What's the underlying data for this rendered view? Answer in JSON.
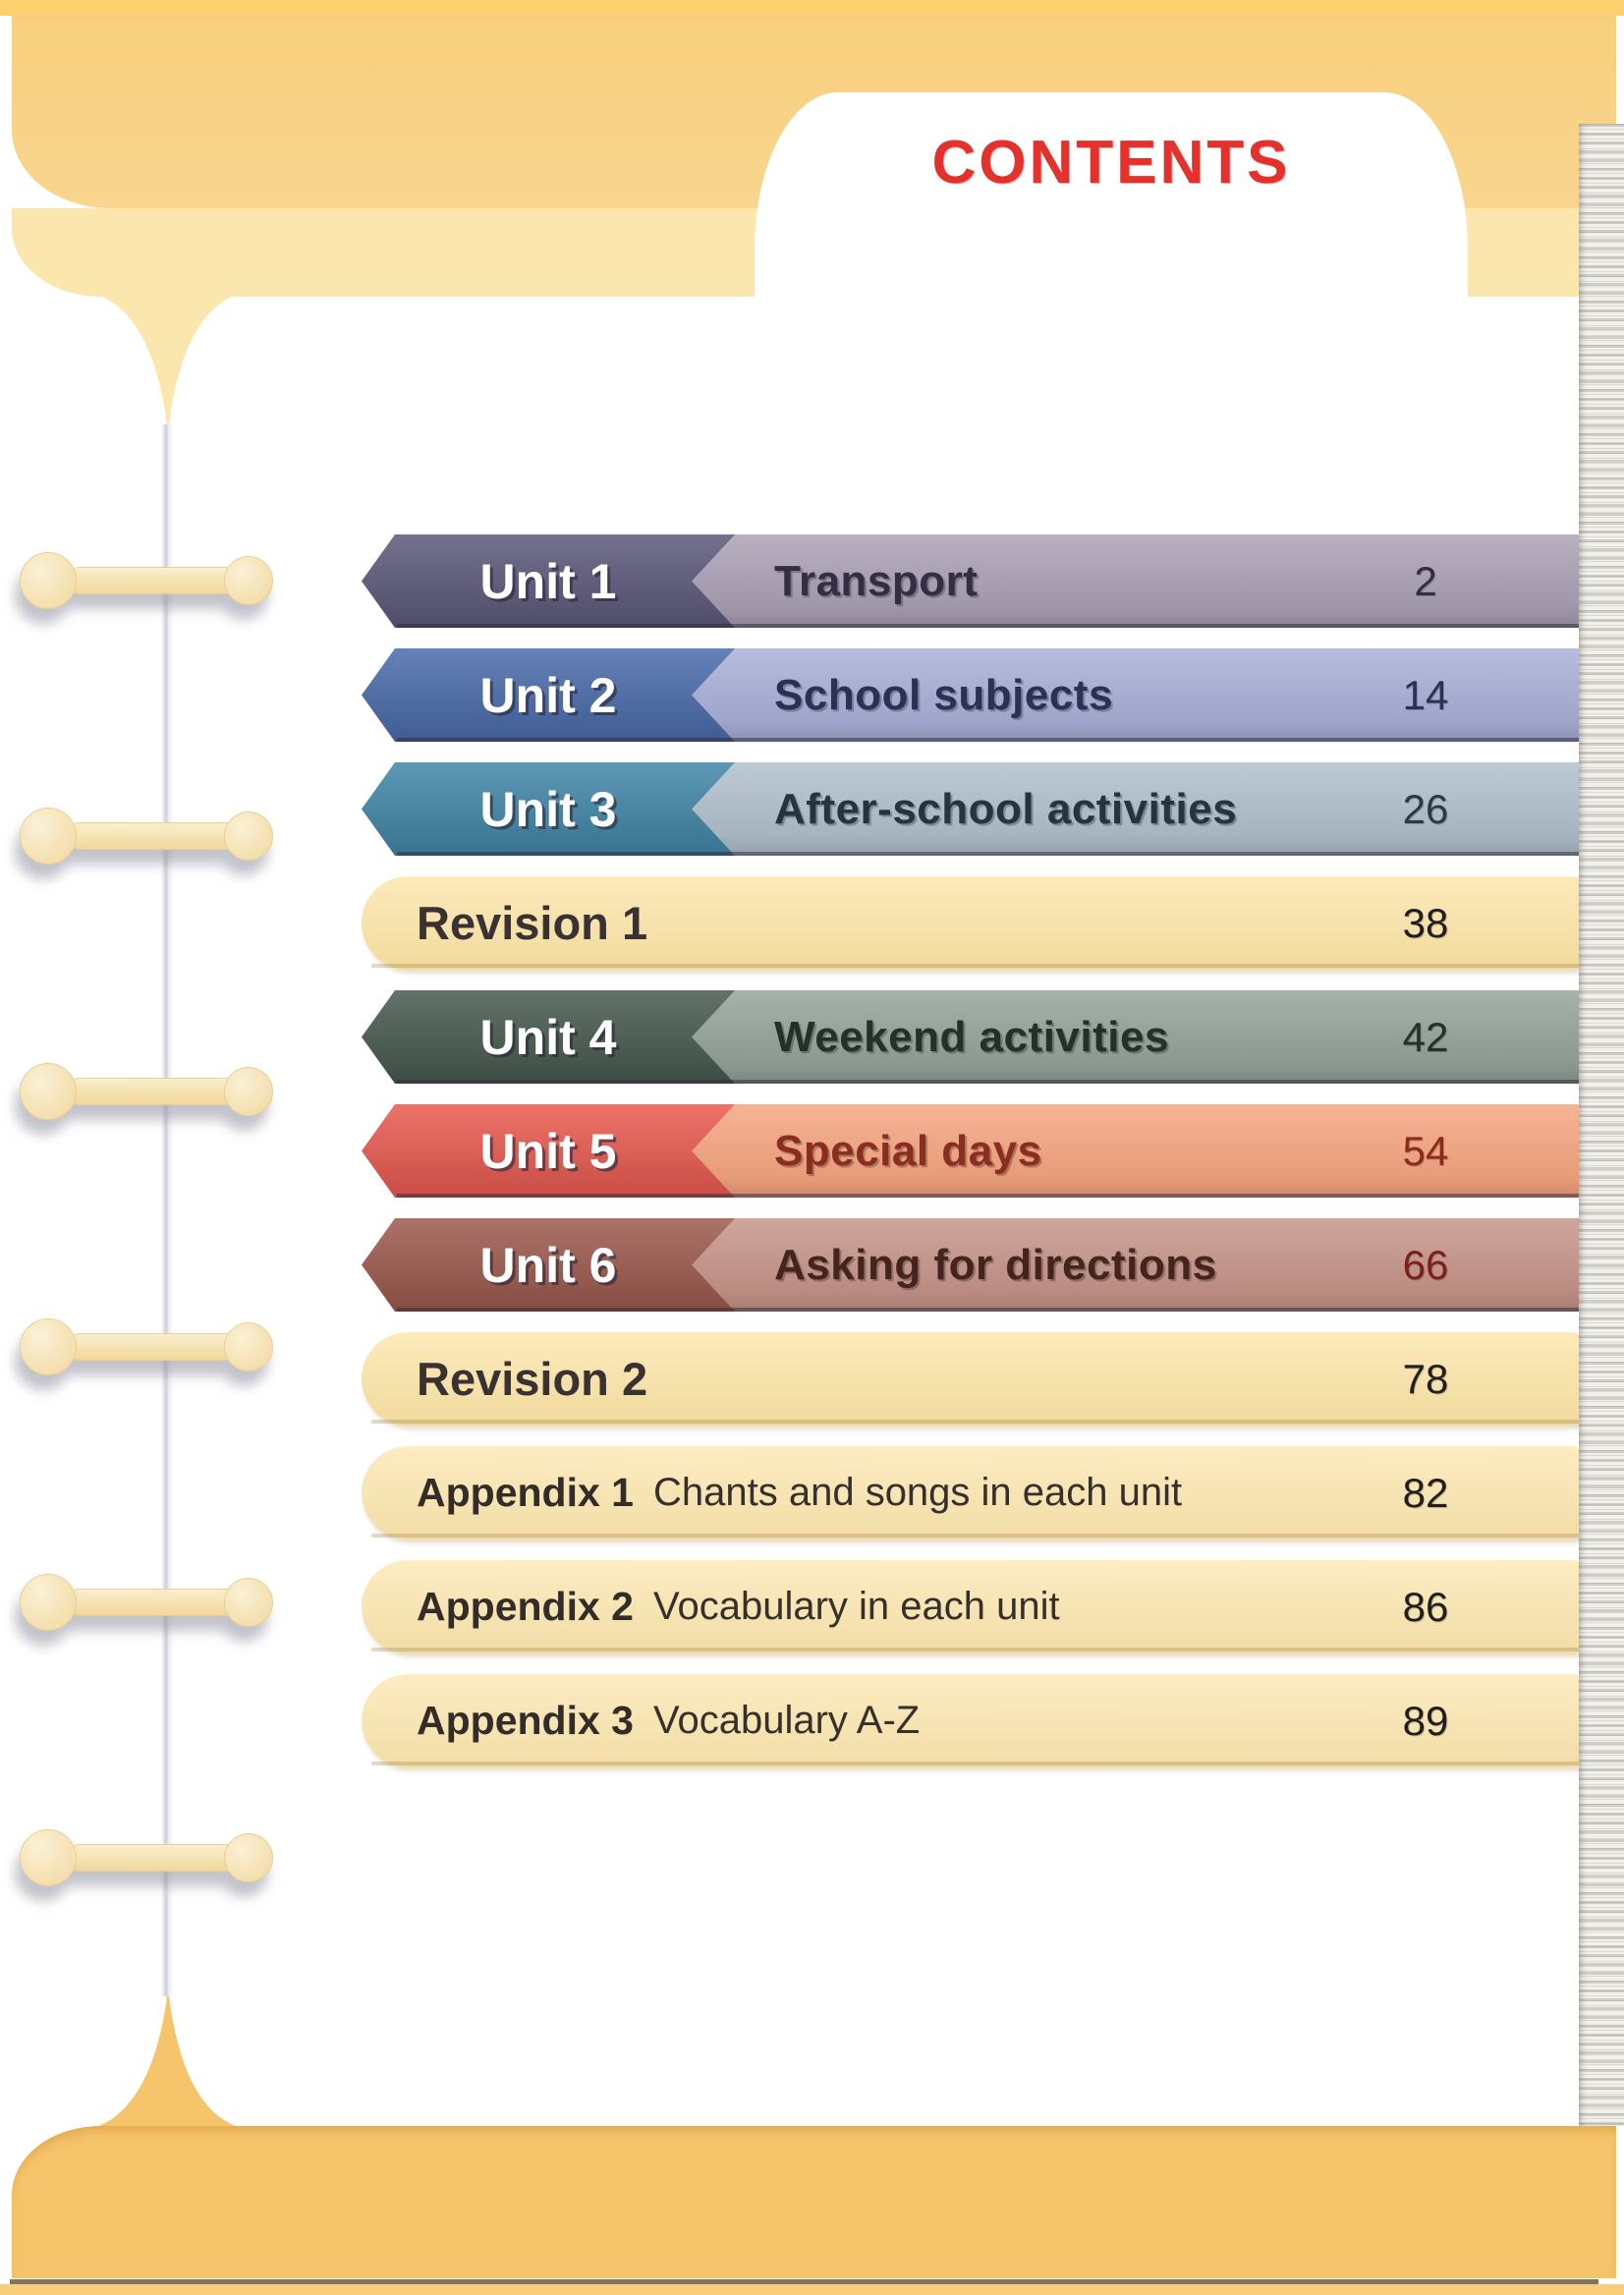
{
  "page": {
    "title": "CONTENTS",
    "title_color": "#e5312b"
  },
  "toc": {
    "rows": [
      {
        "type": "unit",
        "label": "Unit 1",
        "topic": "Transport",
        "page": "2",
        "badge_color": "#5b597b",
        "bar_color": "#a99eb3",
        "text_color": "#332e44",
        "num_color": "#332e44"
      },
      {
        "type": "unit",
        "label": "Unit 2",
        "topic": "School subjects",
        "page": "14",
        "badge_color": "#4a6cab",
        "bar_color": "#a7aed6",
        "text_color": "#2c3154",
        "num_color": "#2c3154"
      },
      {
        "type": "unit",
        "label": "Unit 3",
        "topic": "After-school activities",
        "page": "26",
        "badge_color": "#4186a8",
        "bar_color": "#afbeca",
        "text_color": "#26343f",
        "num_color": "#2d3a44"
      },
      {
        "type": "revision",
        "label": "Revision 1",
        "desc": "",
        "page": "38",
        "bar_color": "#fbe3a4",
        "text_color": "#3a3132",
        "num_color": "#201e1c"
      },
      {
        "type": "unit",
        "label": "Unit 4",
        "topic": "Weekend activities",
        "page": "42",
        "badge_color": "#475a4e",
        "bar_color": "#92a19a",
        "text_color": "#243029",
        "num_color": "#262f28"
      },
      {
        "type": "unit",
        "label": "Unit 5",
        "topic": "Special days",
        "page": "54",
        "badge_color": "#ea5a4f",
        "bar_color": "#f4a47f",
        "text_color": "#8b2d21",
        "num_color": "#8e2a1d"
      },
      {
        "type": "unit",
        "label": "Unit 6",
        "topic": "Asking for directions",
        "page": "66",
        "badge_color": "#9e594d",
        "bar_color": "#c49388",
        "text_color": "#44241d",
        "num_color": "#7e201a"
      },
      {
        "type": "revision",
        "label": "Revision 2",
        "desc": "",
        "page": "78",
        "bar_color": "#fbe3a4",
        "text_color": "#3a3132",
        "num_color": "#201e1c"
      },
      {
        "type": "appendix",
        "label": "Appendix 1",
        "desc": "Chants and songs in each unit",
        "page": "82",
        "bar_color": "#fce6ae",
        "text_color": "#332d2a",
        "num_color": "#201e1c"
      },
      {
        "type": "appendix",
        "label": "Appendix 2",
        "desc": "Vocabulary in each unit",
        "page": "86",
        "bar_color": "#fce6ae",
        "text_color": "#332d2a",
        "num_color": "#201e1c"
      },
      {
        "type": "appendix",
        "label": "Appendix 3",
        "desc": "Vocabulary A-Z",
        "page": "89",
        "bar_color": "#fce6ae",
        "text_color": "#332d2a",
        "num_color": "#201e1c"
      }
    ]
  }
}
